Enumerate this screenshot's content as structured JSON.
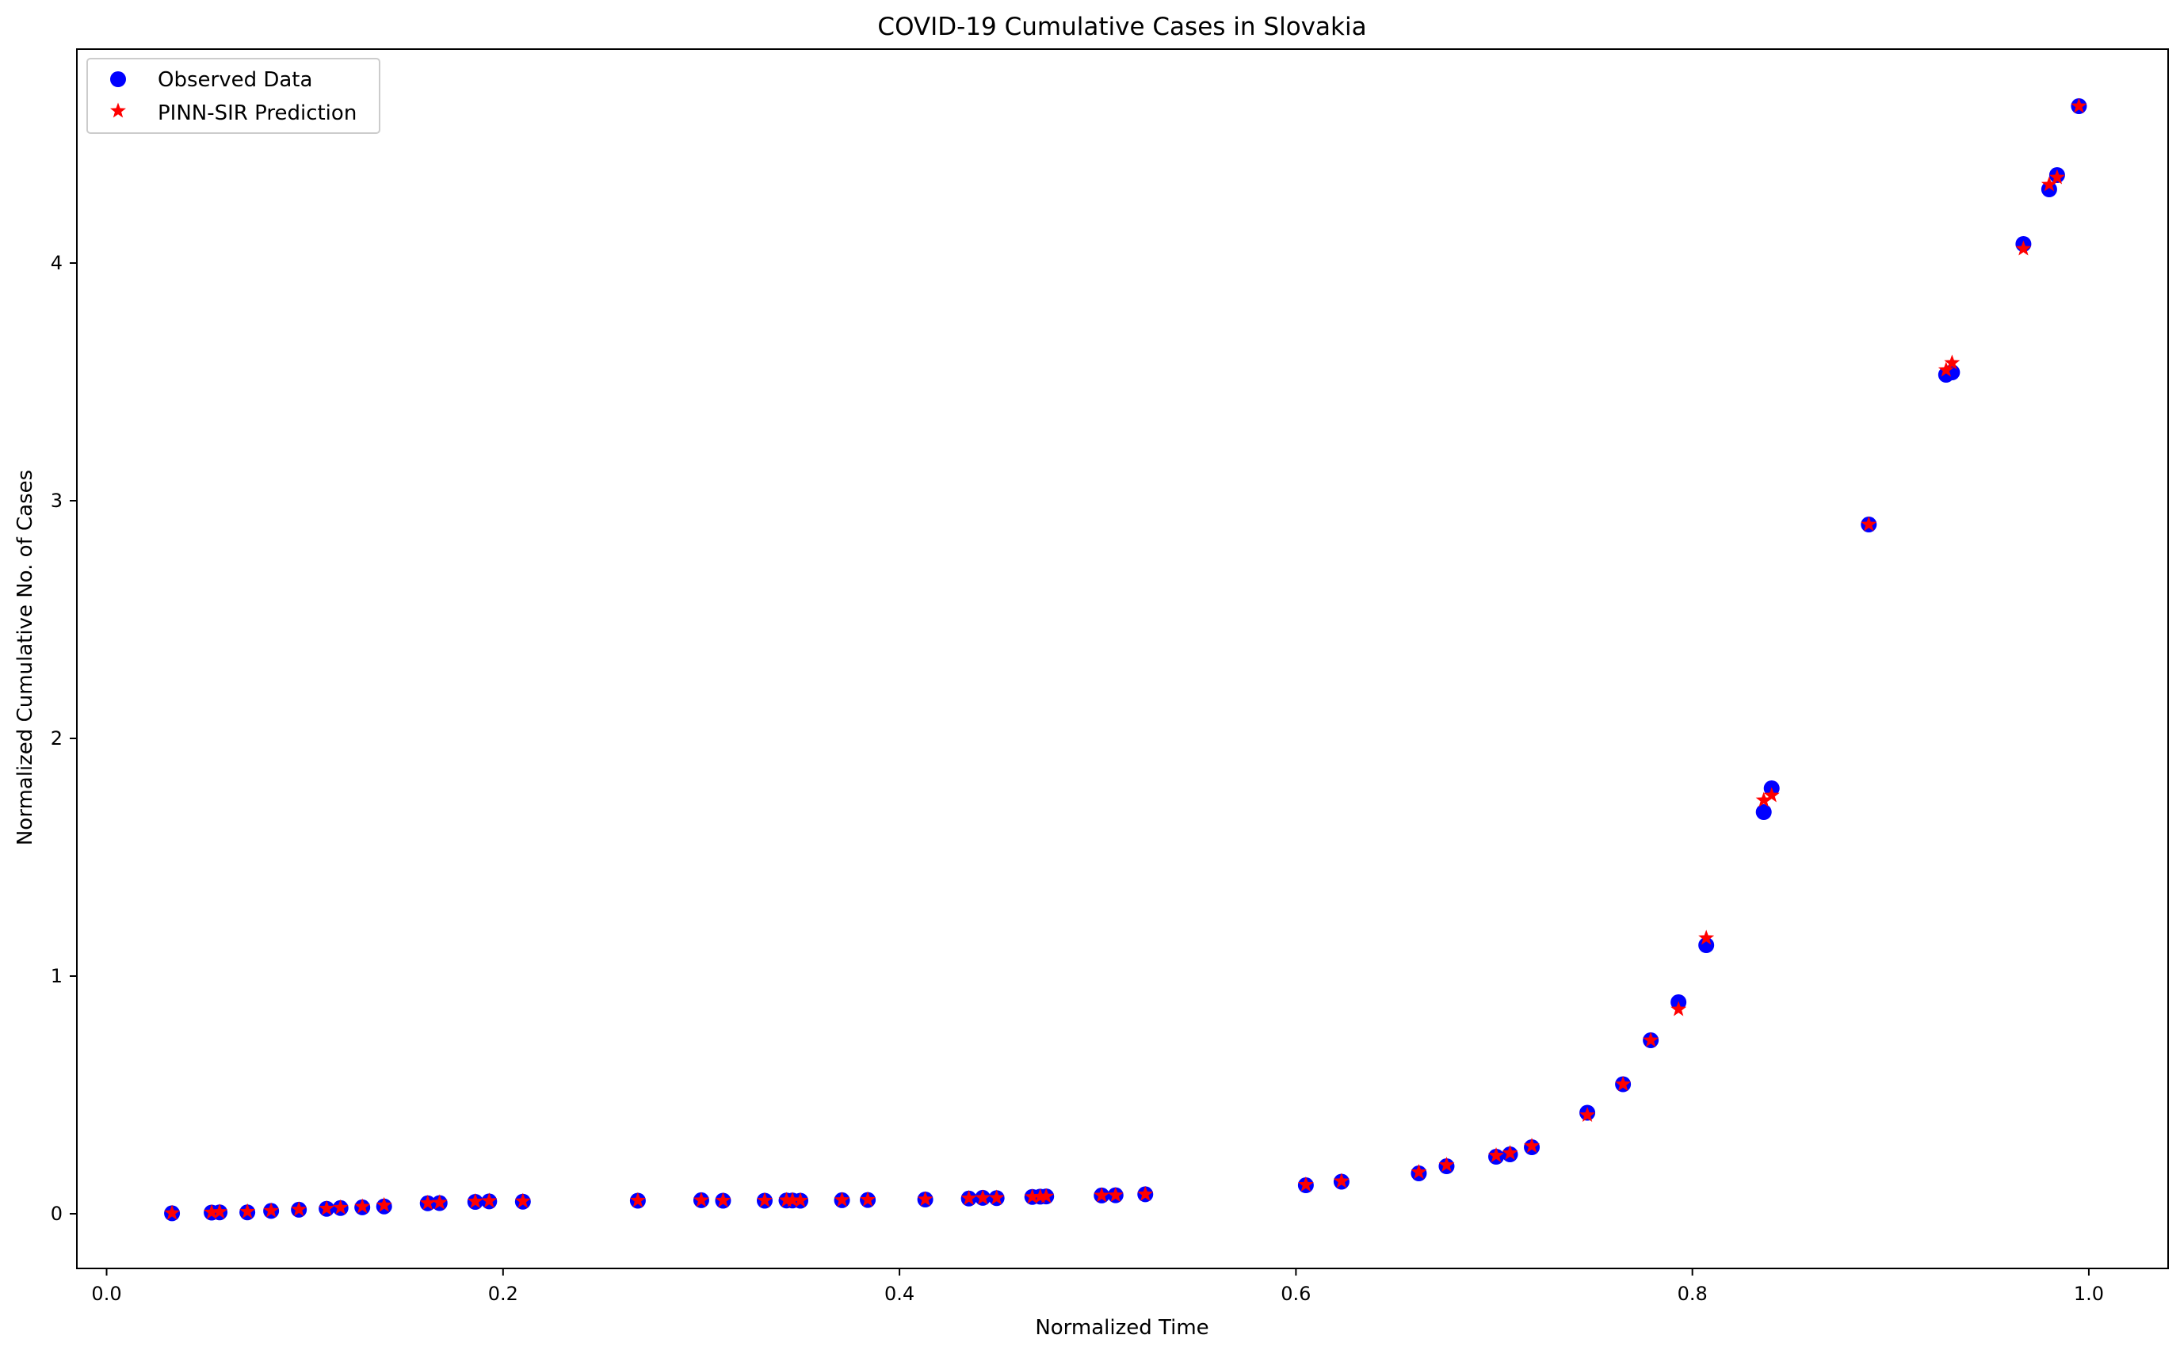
{
  "chart_data": {
    "type": "scatter",
    "title": "COVID-19 Cumulative Cases in Slovakia",
    "xlabel": "Normalized Time",
    "ylabel": "Normalized Cumulative No. of Cases",
    "xlim": [
      -0.015,
      1.04
    ],
    "ylim": [
      -0.23,
      4.9
    ],
    "xticks": [
      0.0,
      0.2,
      0.4,
      0.6,
      0.8,
      1.0
    ],
    "xtick_labels": [
      "0.0",
      "0.2",
      "0.4",
      "0.6",
      "0.8",
      "1.0"
    ],
    "yticks": [
      0,
      1,
      2,
      3,
      4
    ],
    "ytick_labels": [
      "0",
      "1",
      "2",
      "3",
      "4"
    ],
    "grid": false,
    "legend_position": "top-left",
    "series": [
      {
        "name": "Observed Data",
        "marker": "circle",
        "color": "#0000ff",
        "x": [
          0.033,
          0.053,
          0.057,
          0.071,
          0.083,
          0.097,
          0.111,
          0.118,
          0.129,
          0.14,
          0.162,
          0.168,
          0.186,
          0.193,
          0.21,
          0.268,
          0.3,
          0.311,
          0.332,
          0.343,
          0.346,
          0.35,
          0.371,
          0.384,
          0.413,
          0.435,
          0.442,
          0.449,
          0.467,
          0.471,
          0.474,
          0.502,
          0.509,
          0.524,
          0.605,
          0.623,
          0.662,
          0.676,
          0.701,
          0.708,
          0.719,
          0.747,
          0.765,
          0.779,
          0.793,
          0.807,
          0.836,
          0.84,
          0.889,
          0.928,
          0.931,
          0.967,
          0.98,
          0.984,
          0.995
        ],
        "y": [
          0.002,
          0.005,
          0.006,
          0.006,
          0.012,
          0.017,
          0.021,
          0.024,
          0.027,
          0.031,
          0.044,
          0.045,
          0.05,
          0.052,
          0.051,
          0.055,
          0.057,
          0.055,
          0.055,
          0.056,
          0.056,
          0.055,
          0.057,
          0.058,
          0.06,
          0.064,
          0.067,
          0.066,
          0.071,
          0.072,
          0.073,
          0.077,
          0.078,
          0.082,
          0.12,
          0.135,
          0.17,
          0.2,
          0.24,
          0.25,
          0.28,
          0.425,
          0.545,
          0.73,
          0.89,
          1.13,
          1.69,
          1.79,
          2.9,
          3.53,
          3.54,
          4.08,
          4.31,
          4.37,
          4.66
        ]
      },
      {
        "name": "PINN-SIR Prediction",
        "marker": "star",
        "color": "#ff0000",
        "x": [
          0.033,
          0.053,
          0.057,
          0.071,
          0.083,
          0.097,
          0.111,
          0.118,
          0.129,
          0.14,
          0.162,
          0.168,
          0.186,
          0.193,
          0.21,
          0.268,
          0.3,
          0.311,
          0.332,
          0.343,
          0.346,
          0.35,
          0.371,
          0.384,
          0.413,
          0.435,
          0.442,
          0.449,
          0.467,
          0.471,
          0.474,
          0.502,
          0.509,
          0.524,
          0.605,
          0.623,
          0.662,
          0.676,
          0.701,
          0.708,
          0.719,
          0.747,
          0.765,
          0.779,
          0.793,
          0.807,
          0.836,
          0.84,
          0.889,
          0.928,
          0.931,
          0.967,
          0.98,
          0.984,
          0.995
        ],
        "y": [
          0.003,
          0.006,
          0.008,
          0.009,
          0.013,
          0.018,
          0.022,
          0.026,
          0.03,
          0.036,
          0.045,
          0.047,
          0.052,
          0.054,
          0.053,
          0.056,
          0.057,
          0.056,
          0.056,
          0.057,
          0.057,
          0.056,
          0.058,
          0.059,
          0.061,
          0.065,
          0.067,
          0.067,
          0.071,
          0.072,
          0.073,
          0.077,
          0.078,
          0.082,
          0.122,
          0.137,
          0.175,
          0.205,
          0.245,
          0.255,
          0.285,
          0.415,
          0.545,
          0.73,
          0.86,
          1.16,
          1.74,
          1.76,
          2.9,
          3.55,
          3.58,
          4.06,
          4.33,
          4.36,
          4.66
        ]
      }
    ]
  }
}
